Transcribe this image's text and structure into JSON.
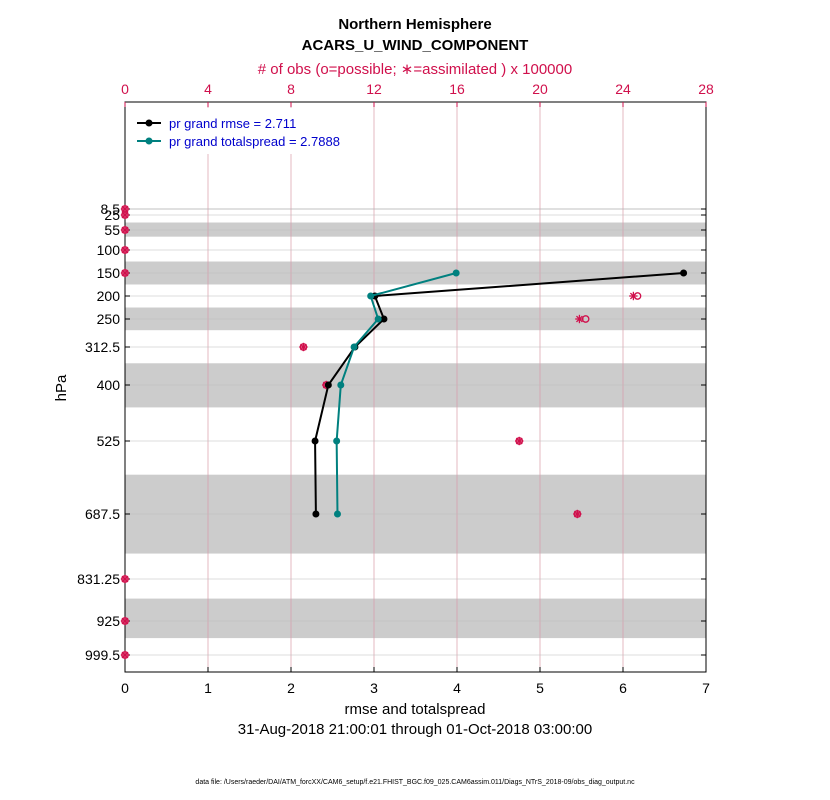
{
  "chart_data": {
    "type": "line",
    "title": "Northern Hemisphere",
    "subtitle": "ACARS_U_WIND_COMPONENT",
    "top_axis_label": "# of obs (o=possible; ∗=assimilated ) x 100000",
    "xlabel": "rmse and totalspread",
    "ylabel": "hPa",
    "date_range": "31-Aug-2018 21:00:01 through 01-Oct-2018 03:00:00",
    "footer": "data file: /Users/raeder/DAI/ATM_forcXX/CAM6_setup/f.e21.FHIST_BGC.f09_025.CAM6assim.011/Diags_NTrS_2018-09/obs_diag_output.nc",
    "xlim": [
      0,
      7
    ],
    "x_ticks": [
      0,
      1,
      2,
      3,
      4,
      5,
      6,
      7
    ],
    "top_xlim": [
      0,
      28
    ],
    "top_ticks": [
      0,
      4,
      8,
      12,
      16,
      20,
      24,
      28
    ],
    "levels": [
      8.5,
      25,
      55,
      100,
      150,
      200,
      250,
      312.5,
      400,
      525,
      687.5,
      831.25,
      925,
      999.5
    ],
    "level_labels": [
      "8.5",
      "25",
      "55",
      "100",
      "150",
      "200",
      "250",
      "312.5",
      "400",
      "525",
      "687.5",
      "831.25",
      "925",
      "999.5"
    ],
    "shaded_bands": [
      [
        7,
        10
      ],
      [
        40,
        70
      ],
      [
        125,
        175
      ],
      [
        225,
        275
      ],
      [
        350,
        450
      ],
      [
        600,
        775
      ],
      [
        875,
        962.5
      ]
    ],
    "legend_position": "top-left",
    "legend": [
      "pr grand rmse = 2.711",
      "pr grand totalspread = 2.7888"
    ],
    "series": [
      {
        "name": "pr grand rmse",
        "color": "#000000",
        "levels": [
          150,
          200,
          250,
          312.5,
          400,
          525,
          687.5
        ],
        "values": [
          6.73,
          3.01,
          3.12,
          2.77,
          2.45,
          2.29,
          2.3
        ]
      },
      {
        "name": "pr grand totalspread",
        "color": "#00807f",
        "levels": [
          150,
          200,
          250,
          312.5,
          400,
          525,
          687.5
        ],
        "values": [
          3.99,
          2.96,
          3.05,
          2.76,
          2.6,
          2.55,
          2.56
        ]
      }
    ],
    "obs": {
      "color": "#d0104c",
      "levels": [
        8.5,
        25,
        55,
        100,
        150,
        200,
        250,
        312.5,
        400,
        525,
        687.5,
        831.25,
        925,
        999.5
      ],
      "possible": [
        0,
        0,
        0,
        0,
        0,
        24.7,
        22.2,
        8.6,
        9.7,
        19.0,
        21.8,
        0,
        0,
        0
      ],
      "assimilated": [
        0,
        0,
        0,
        0,
        0,
        24.5,
        21.9,
        8.6,
        9.7,
        19.0,
        21.8,
        0,
        0,
        0
      ]
    }
  }
}
